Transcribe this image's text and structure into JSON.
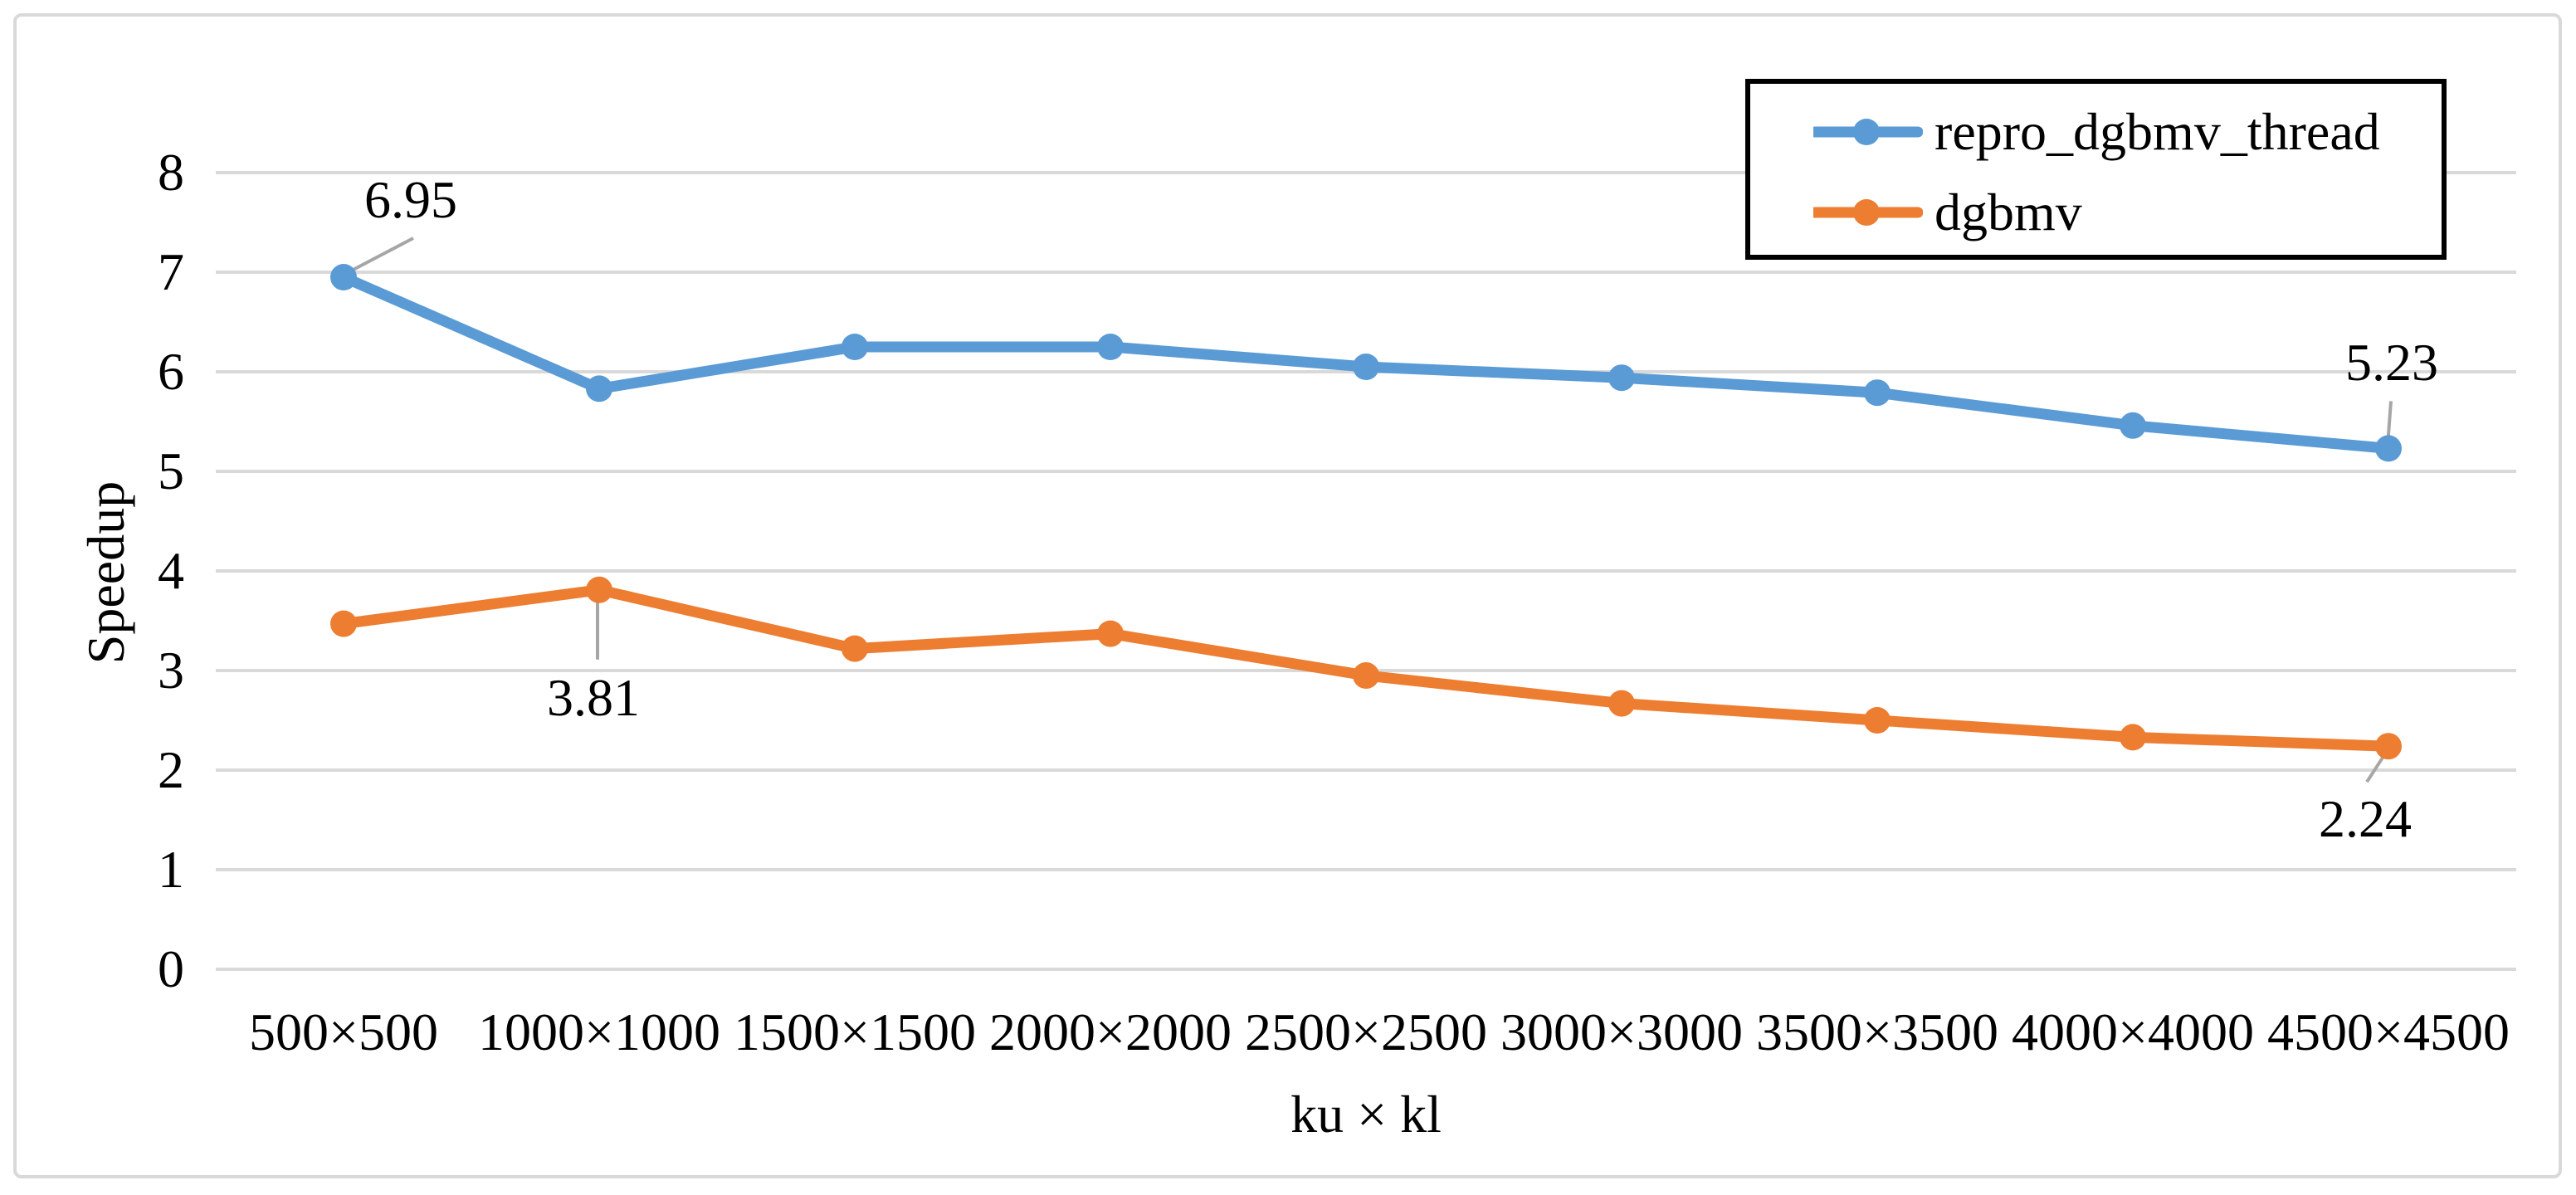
{
  "chart_data": {
    "type": "line",
    "title": "",
    "xlabel": "ku × kl",
    "ylabel": "Speedup",
    "categories": [
      "500×500",
      "1000×1000",
      "1500×1500",
      "2000×2000",
      "2500×2500",
      "3000×3000",
      "3500×3500",
      "4000×4000",
      "4500×4500"
    ],
    "y_ticks": [
      "0",
      "1",
      "2",
      "3",
      "4",
      "5",
      "6",
      "7",
      "8"
    ],
    "ylim": [
      0,
      8
    ],
    "grid": "horizontal-only",
    "legend_position": "top-right-inside-black-box",
    "series": [
      {
        "name": "repro_dgbmv_thread",
        "color": "#5B9BD5",
        "values": [
          6.95,
          5.83,
          6.25,
          6.25,
          6.05,
          5.94,
          5.79,
          5.46,
          5.23
        ]
      },
      {
        "name": "dgbmv",
        "color": "#ED7D31",
        "values": [
          3.47,
          3.81,
          3.22,
          3.37,
          2.95,
          2.67,
          2.5,
          2.33,
          2.24
        ]
      }
    ],
    "annotations": [
      {
        "series": "repro_dgbmv_thread",
        "index": 0,
        "label": "6.95"
      },
      {
        "series": "repro_dgbmv_thread",
        "index": 8,
        "label": "5.23"
      },
      {
        "series": "dgbmv",
        "index": 1,
        "label": "3.81"
      },
      {
        "series": "dgbmv",
        "index": 8,
        "label": "2.24"
      }
    ]
  },
  "style_colors": {
    "gridline": "#D9D9D9",
    "leader_line": "#A6A6A6",
    "text": "#000000",
    "legend_border": "#000000",
    "frame_border": "#D9D9D9",
    "background": "#FFFFFF"
  }
}
